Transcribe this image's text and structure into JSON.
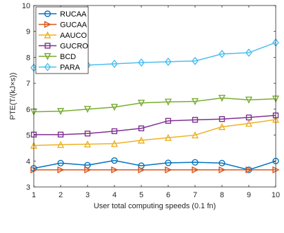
{
  "chart_data": {
    "type": "line",
    "xlabel": "User total computing speeds (0.1 fn)",
    "ylabel": "PTE(T/(kJ×s))",
    "xlim": [
      1,
      10
    ],
    "ylim": [
      3,
      10
    ],
    "x": [
      1,
      2,
      3,
      4,
      5,
      6,
      7,
      8,
      9,
      10
    ],
    "x_ticks": [
      "1",
      "2",
      "3",
      "4",
      "5",
      "6",
      "7",
      "8",
      "9",
      "10"
    ],
    "y_ticks": [
      "3",
      "4",
      "5",
      "6",
      "7",
      "8",
      "9",
      "10"
    ],
    "grid": false,
    "legend_position": "top-left",
    "series": [
      {
        "name": "RUCAA",
        "color": "#0072BD",
        "marker": "circle",
        "values": [
          3.72,
          3.92,
          3.84,
          4.02,
          3.82,
          3.93,
          3.95,
          3.92,
          3.66,
          4.0
        ]
      },
      {
        "name": "GUCAA",
        "color": "#D95319",
        "marker": "triangle-right",
        "values": [
          3.66,
          3.66,
          3.66,
          3.66,
          3.66,
          3.66,
          3.66,
          3.66,
          3.66,
          3.66
        ]
      },
      {
        "name": "AAUCO",
        "color": "#EDB120",
        "marker": "triangle-up",
        "values": [
          4.6,
          4.63,
          4.65,
          4.67,
          4.8,
          4.9,
          5.0,
          5.32,
          5.45,
          5.6
        ]
      },
      {
        "name": "GUCRO",
        "color": "#7E2F8E",
        "marker": "square",
        "values": [
          5.02,
          5.02,
          5.06,
          5.15,
          5.26,
          5.55,
          5.59,
          5.62,
          5.68,
          5.76
        ]
      },
      {
        "name": "BCD",
        "color": "#77AC30",
        "marker": "triangle-down",
        "values": [
          5.9,
          5.92,
          6.0,
          6.08,
          6.24,
          6.28,
          6.3,
          6.43,
          6.36,
          6.4
        ]
      },
      {
        "name": "PARA",
        "color": "#4DBEEE",
        "marker": "diamond",
        "values": [
          7.6,
          7.66,
          7.7,
          7.75,
          7.8,
          7.83,
          7.86,
          8.13,
          8.18,
          8.57
        ]
      }
    ]
  }
}
